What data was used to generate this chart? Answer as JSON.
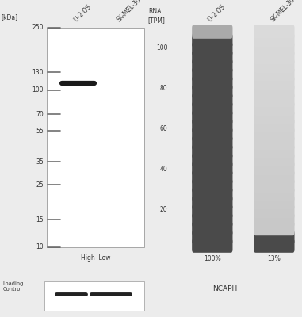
{
  "bg_color": "#ececec",
  "white": "#ffffff",
  "kda_labels": [
    "250",
    "130",
    "100",
    "70",
    "55",
    "35",
    "25",
    "15",
    "10"
  ],
  "kda_values": [
    250,
    130,
    100,
    70,
    55,
    35,
    25,
    15,
    10
  ],
  "ladder_color": "#555555",
  "band_u2os_kda": 110,
  "band_color": "#1a1a1a",
  "loading_band_color": "#222222",
  "rna_y_ticks": [
    20,
    40,
    60,
    80,
    100
  ],
  "rna_n_segments": 26,
  "u2os_dark": "#4a4a4a",
  "u2os_top": "#aaaaaa",
  "skmel_light": "#c8c8c8",
  "skmel_lighter": "#d8d8d8",
  "skmel_dark_bottom": "#4a4a4a",
  "u2os_pct": "100%",
  "skmel_pct": "13%",
  "gene_label": "NCAPH",
  "title_rna": "RNA\n[TPM]",
  "label_u2os_wb": "U-2 OS",
  "label_skmel_wb": "SK-MEL-30",
  "label_u2os_rna": "U-2 OS",
  "label_skmel_rna": "SK-MEL-30",
  "kda_unit": "[kDa]",
  "high_low": "High  Low",
  "loading_control": "Loading\nControl"
}
